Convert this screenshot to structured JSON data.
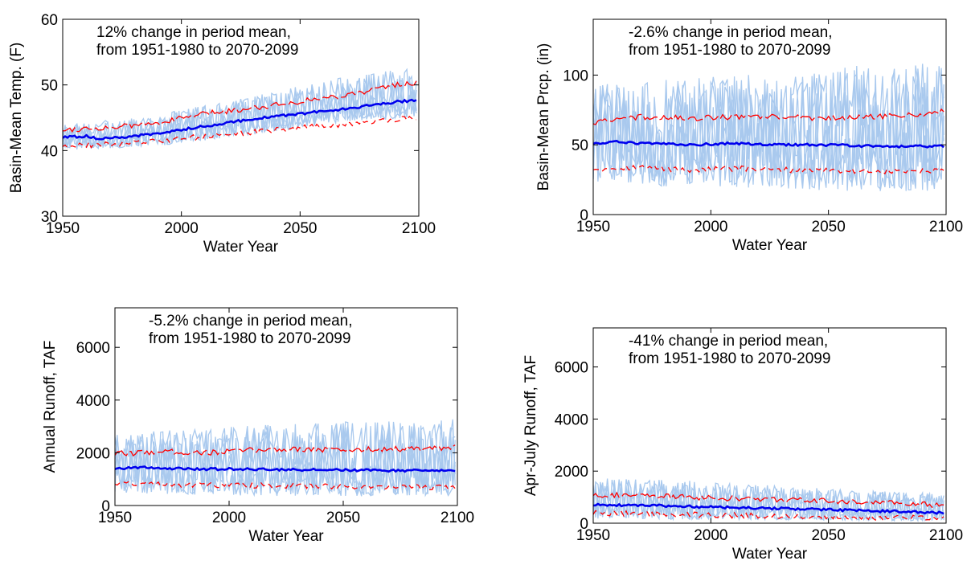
{
  "chart_data": [
    {
      "type": "line",
      "xlabel": "Water Year",
      "ylabel": "Basin-Mean Temp. (F)",
      "annotation": [
        "12% change in period mean,",
        "from 1951-1980 to 2070-2099"
      ],
      "xlim": [
        1950,
        2100
      ],
      "ylim": [
        30,
        60
      ],
      "xticks": [
        1950,
        2000,
        2050,
        2100
      ],
      "yticks": [
        30,
        40,
        50,
        60
      ],
      "grid": false,
      "series": [
        {
          "role": "ensemble-members",
          "color": "#a9c9ee",
          "spread_low": [
            40,
            40.5,
            42,
            44,
            45
          ],
          "spread_high": [
            44,
            45.5,
            48,
            51,
            53
          ]
        },
        {
          "role": "upper",
          "color": "#ff0000",
          "style": "dashed-long",
          "points": [
            [
              1950,
              43.2
            ],
            [
              1970,
              43.5
            ],
            [
              1990,
              44.2
            ],
            [
              2010,
              45.6
            ],
            [
              2030,
              46.5
            ],
            [
              2050,
              47.5
            ],
            [
              2070,
              48.5
            ],
            [
              2090,
              50.0
            ],
            [
              2099,
              50.3
            ]
          ]
        },
        {
          "role": "median",
          "color": "#0000ee",
          "style": "solid",
          "points": [
            [
              1950,
              42.0
            ],
            [
              1960,
              42.2
            ],
            [
              1965,
              41.8
            ],
            [
              1975,
              42.0
            ],
            [
              1990,
              42.6
            ],
            [
              2000,
              43.2
            ],
            [
              2010,
              43.7
            ],
            [
              2020,
              44.3
            ],
            [
              2030,
              44.8
            ],
            [
              2040,
              45.2
            ],
            [
              2050,
              45.6
            ],
            [
              2060,
              46.0
            ],
            [
              2070,
              46.4
            ],
            [
              2080,
              46.9
            ],
            [
              2090,
              47.4
            ],
            [
              2099,
              47.7
            ]
          ]
        },
        {
          "role": "lower",
          "color": "#ff0000",
          "style": "dashed-short",
          "points": [
            [
              1950,
              40.8
            ],
            [
              1970,
              40.9
            ],
            [
              1990,
              41.4
            ],
            [
              2010,
              42.2
            ],
            [
              2030,
              42.8
            ],
            [
              2050,
              43.5
            ],
            [
              2070,
              44.0
            ],
            [
              2090,
              44.8
            ],
            [
              2099,
              45.0
            ]
          ]
        }
      ]
    },
    {
      "type": "line",
      "xlabel": "Water Year",
      "ylabel": "Basin-Mean Prcp. (in)",
      "annotation": [
        "-2.6% change in period mean,",
        "from 1951-1980 to 2070-2099"
      ],
      "xlim": [
        1950,
        2100
      ],
      "ylim": [
        0,
        140
      ],
      "xticks": [
        1950,
        2000,
        2050,
        2100
      ],
      "yticks": [
        0,
        50,
        100
      ],
      "grid": false,
      "series": [
        {
          "role": "ensemble-members",
          "color": "#a9c9ee",
          "spread_low": [
            20,
            18,
            17,
            15,
            15
          ],
          "spread_high": [
            95,
            100,
            105,
            110,
            112
          ]
        },
        {
          "role": "upper",
          "color": "#ff0000",
          "style": "dashed-long",
          "points": [
            [
              1950,
              66
            ],
            [
              1970,
              70
            ],
            [
              1990,
              69
            ],
            [
              2010,
              70
            ],
            [
              2030,
              70
            ],
            [
              2050,
              69
            ],
            [
              2070,
              70
            ],
            [
              2090,
              72
            ],
            [
              2099,
              74
            ]
          ]
        },
        {
          "role": "median",
          "color": "#0000ee",
          "style": "solid",
          "points": [
            [
              1950,
              51
            ],
            [
              1960,
              52
            ],
            [
              1970,
              51
            ],
            [
              1990,
              50
            ],
            [
              2010,
              51
            ],
            [
              2030,
              50
            ],
            [
              2050,
              50
            ],
            [
              2070,
              49
            ],
            [
              2090,
              49
            ],
            [
              2099,
              49
            ]
          ]
        },
        {
          "role": "lower",
          "color": "#ff0000",
          "style": "dashed-short",
          "points": [
            [
              1950,
              33
            ],
            [
              1970,
              34
            ],
            [
              1990,
              32
            ],
            [
              2010,
              33
            ],
            [
              2030,
              32
            ],
            [
              2050,
              32
            ],
            [
              2070,
              31
            ],
            [
              2090,
              31
            ],
            [
              2099,
              31
            ]
          ]
        }
      ]
    },
    {
      "type": "line",
      "xlabel": "Water Year",
      "ylabel": "Annual Runoff, TAF",
      "annotation": [
        "-5.2% change in period mean,",
        "from 1951-1980 to 2070-2099"
      ],
      "xlim": [
        1950,
        2100
      ],
      "ylim": [
        0,
        7500
      ],
      "xticks": [
        1950,
        2000,
        2050,
        2100
      ],
      "yticks": [
        0,
        2000,
        4000,
        6000
      ],
      "grid": false,
      "series": [
        {
          "role": "ensemble-members",
          "color": "#a9c9ee",
          "spread_low": [
            400,
            350,
            300,
            300,
            300
          ],
          "spread_high": [
            2800,
            3000,
            3200,
            3300,
            3400
          ]
        },
        {
          "role": "upper",
          "color": "#ff0000",
          "style": "dashed-long",
          "points": [
            [
              1950,
              1950
            ],
            [
              1970,
              2050
            ],
            [
              1990,
              2000
            ],
            [
              2010,
              2100
            ],
            [
              2030,
              2150
            ],
            [
              2050,
              2100
            ],
            [
              2070,
              2150
            ],
            [
              2090,
              2150
            ],
            [
              2099,
              2200
            ]
          ]
        },
        {
          "role": "median",
          "color": "#0000ee",
          "style": "solid",
          "points": [
            [
              1950,
              1400
            ],
            [
              1960,
              1450
            ],
            [
              1970,
              1420
            ],
            [
              1990,
              1380
            ],
            [
              2010,
              1380
            ],
            [
              2030,
              1360
            ],
            [
              2050,
              1350
            ],
            [
              2070,
              1330
            ],
            [
              2090,
              1320
            ],
            [
              2099,
              1300
            ]
          ]
        },
        {
          "role": "lower",
          "color": "#ff0000",
          "style": "dashed-short",
          "points": [
            [
              1950,
              850
            ],
            [
              1970,
              820
            ],
            [
              1990,
              780
            ],
            [
              2010,
              760
            ],
            [
              2030,
              740
            ],
            [
              2050,
              720
            ],
            [
              2070,
              700
            ],
            [
              2090,
              700
            ],
            [
              2099,
              700
            ]
          ]
        }
      ]
    },
    {
      "type": "line",
      "xlabel": "Water Year",
      "ylabel": "Apr-July Runoff, TAF",
      "annotation": [
        "-41% change in period mean,",
        "from 1951-1980 to 2070-2099"
      ],
      "xlim": [
        1950,
        2100
      ],
      "ylim": [
        0,
        7500
      ],
      "xticks": [
        1950,
        2000,
        2050,
        2100
      ],
      "yticks": [
        0,
        2000,
        4000,
        6000
      ],
      "grid": false,
      "series": [
        {
          "role": "ensemble-members",
          "color": "#a9c9ee",
          "spread_low": [
            150,
            120,
            100,
            80,
            60
          ],
          "spread_high": [
            1800,
            1700,
            1500,
            1300,
            1200
          ]
        },
        {
          "role": "upper",
          "color": "#ff0000",
          "style": "dashed-long",
          "points": [
            [
              1950,
              1100
            ],
            [
              1970,
              1050
            ],
            [
              1990,
              1000
            ],
            [
              2010,
              950
            ],
            [
              2030,
              900
            ],
            [
              2050,
              850
            ],
            [
              2070,
              800
            ],
            [
              2090,
              720
            ],
            [
              2099,
              700
            ]
          ]
        },
        {
          "role": "median",
          "color": "#0000ee",
          "style": "solid",
          "points": [
            [
              1950,
              700
            ],
            [
              1970,
              690
            ],
            [
              1990,
              640
            ],
            [
              2010,
              600
            ],
            [
              2030,
              560
            ],
            [
              2050,
              520
            ],
            [
              2070,
              470
            ],
            [
              2090,
              420
            ],
            [
              2099,
              400
            ]
          ]
        },
        {
          "role": "lower",
          "color": "#ff0000",
          "style": "dashed-short",
          "points": [
            [
              1950,
              380
            ],
            [
              1970,
              360
            ],
            [
              1990,
              330
            ],
            [
              2010,
              300
            ],
            [
              2030,
              270
            ],
            [
              2050,
              250
            ],
            [
              2070,
              220
            ],
            [
              2090,
              200
            ],
            [
              2099,
              190
            ]
          ]
        }
      ]
    }
  ]
}
